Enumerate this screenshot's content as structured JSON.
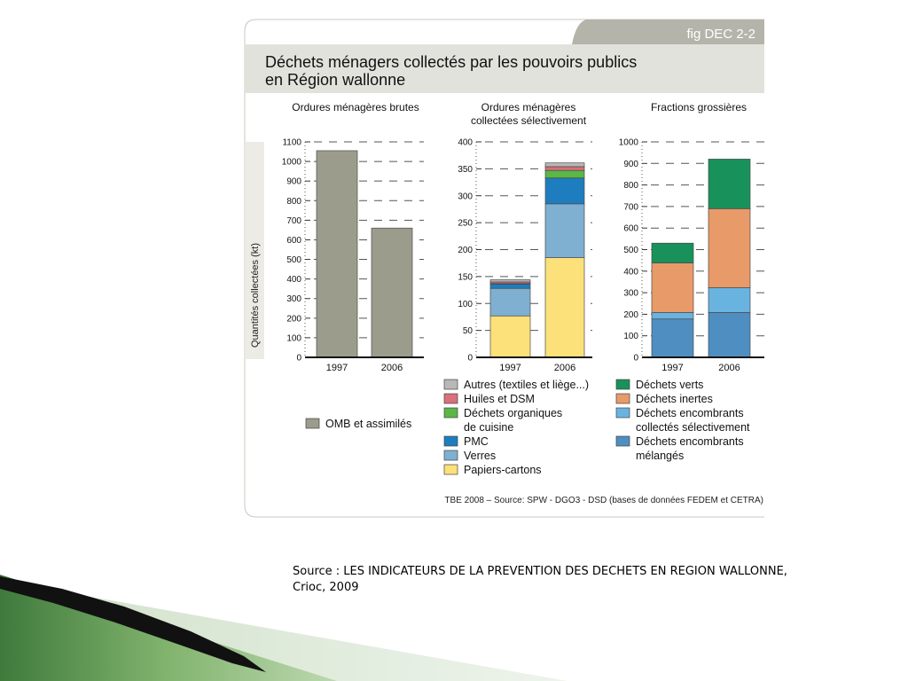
{
  "slide": {
    "source_line1": "Source : LES INDICATEURS DE LA PREVENTION DES DECHETS EN REGION WALLONNE,",
    "source_line2": "Crioc, 2009"
  },
  "figure": {
    "tag": "fig DEC 2-2",
    "title_line1": "Déchets ménagers collectés par les pouvoirs publics",
    "title_line2": "en Région wallonne",
    "ylabel": "Quantités collectées (kt)",
    "footer": "TBE 2008 – Source: SPW - DGO3 - DSD (bases de données FEDEM et CETRA)",
    "colors": {
      "panel_bg": "#f5f4f1",
      "header_bg": "#ddddd6",
      "tag_bg": "#b3b3a8"
    }
  },
  "chart_data": [
    {
      "type": "bar",
      "title": "Ordures ménagères brutes",
      "categories": [
        "1997",
        "2006"
      ],
      "ylim": [
        0,
        1100
      ],
      "yticks": [
        0,
        100,
        200,
        300,
        400,
        500,
        600,
        700,
        800,
        900,
        1000,
        1100
      ],
      "series": [
        {
          "name": "OMB et assimilés",
          "color": "#9c9c8c",
          "values": [
            1055,
            660
          ]
        }
      ]
    },
    {
      "type": "bar",
      "stacked": true,
      "title": [
        "Ordures ménagères",
        "collectées sélectivement"
      ],
      "categories": [
        "1997",
        "2006"
      ],
      "ylim": [
        0,
        400
      ],
      "yticks": [
        0,
        50,
        100,
        150,
        200,
        250,
        300,
        350,
        400
      ],
      "series": [
        {
          "name": "Papiers-cartons",
          "color": "#fce07a",
          "values": [
            77,
            185
          ]
        },
        {
          "name": "Verres",
          "color": "#7fb0d2",
          "values": [
            51,
            100
          ]
        },
        {
          "name": "PMC",
          "color": "#1d7dbe",
          "values": [
            8,
            48
          ]
        },
        {
          "name": "Déchets organiques de cuisine",
          "label_lines": [
            "Déchets organiques",
            "de cuisine"
          ],
          "color": "#5bb746",
          "values": [
            1,
            14
          ]
        },
        {
          "name": "Huiles et DSM",
          "color": "#d9707a",
          "values": [
            3,
            7
          ]
        },
        {
          "name": "Autres (textiles et liège...)",
          "color": "#b8b8b8",
          "values": [
            4,
            7
          ]
        }
      ]
    },
    {
      "type": "bar",
      "stacked": true,
      "title": "Fractions grossières",
      "categories": [
        "1997",
        "2006"
      ],
      "ylim": [
        0,
        1000
      ],
      "yticks": [
        0,
        100,
        200,
        300,
        400,
        500,
        600,
        700,
        800,
        900,
        1000
      ],
      "series": [
        {
          "name": "Déchets encombrants mélangés",
          "label_lines": [
            "Déchets encombrants",
            "mélangés"
          ],
          "color": "#4f8ec0",
          "values": [
            178,
            208
          ]
        },
        {
          "name": "Déchets encombrants collectés sélectivement",
          "label_lines": [
            "Déchets encombrants",
            "collectés sélectivement"
          ],
          "color": "#69b3e0",
          "values": [
            30,
            115
          ]
        },
        {
          "name": "Déchets inertes",
          "color": "#e89a68",
          "values": [
            230,
            367
          ]
        },
        {
          "name": "Déchets verts",
          "color": "#18925a",
          "values": [
            92,
            230
          ]
        }
      ]
    }
  ]
}
